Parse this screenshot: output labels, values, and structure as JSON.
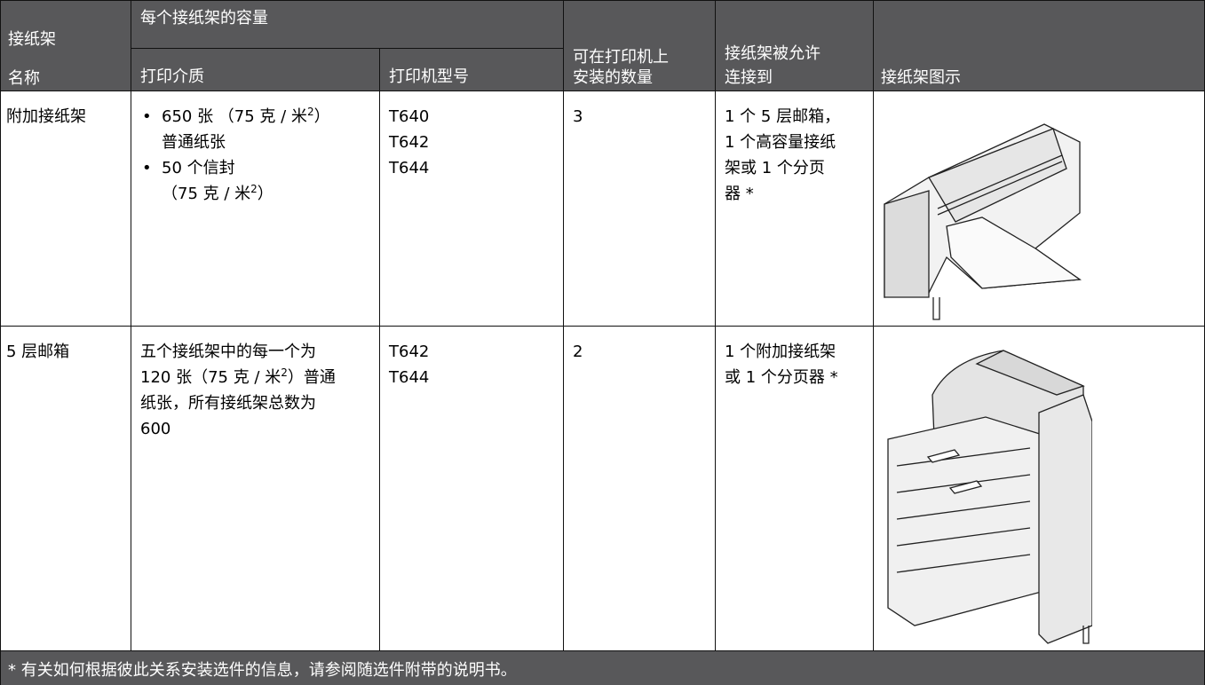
{
  "table": {
    "header": {
      "name": [
        "接纸架",
        "名称"
      ],
      "capacity": "每个接纸架的容量",
      "media": "打印介质",
      "models": "打印机型号",
      "quantity": [
        "可在打印机上",
        "安装的数量"
      ],
      "attach": [
        "接纸架被允许",
        "连接到"
      ],
      "image": "接纸架图示"
    },
    "rows": [
      {
        "name": "附加接纸架",
        "media": [
          {
            "lines": [
              [
                "650 张 （75 克 / 米",
                "2",
                "）"
              ],
              [
                "普通纸张"
              ]
            ]
          },
          {
            "lines": [
              [
                "50 个信封"
              ],
              [
                "（75 克 / 米",
                "2",
                "）"
              ]
            ]
          }
        ],
        "models": [
          "T640",
          "T642",
          "T644"
        ],
        "quantity": "3",
        "attach": [
          "1 个 5 层邮箱，",
          "1 个高容量接纸",
          "架或 1 个分页",
          "器 *"
        ]
      },
      {
        "name": "5 层邮箱",
        "media": [
          {
            "lines": [
              [
                "五个接纸架中的每一个为"
              ],
              [
                "120 张（75 克 / 米",
                "2",
                "）普通"
              ],
              [
                "纸张，所有接纸架总数为"
              ],
              [
                "600"
              ]
            ]
          }
        ],
        "models": [
          "T642",
          "T644"
        ],
        "quantity": "2",
        "attach": [
          "1 个附加接纸架",
          "或 1 个分页器 *"
        ]
      }
    ],
    "footnote": "* 有关如何根据彼此关系安装选件的信息，请参阅随选件附带的说明书。"
  }
}
